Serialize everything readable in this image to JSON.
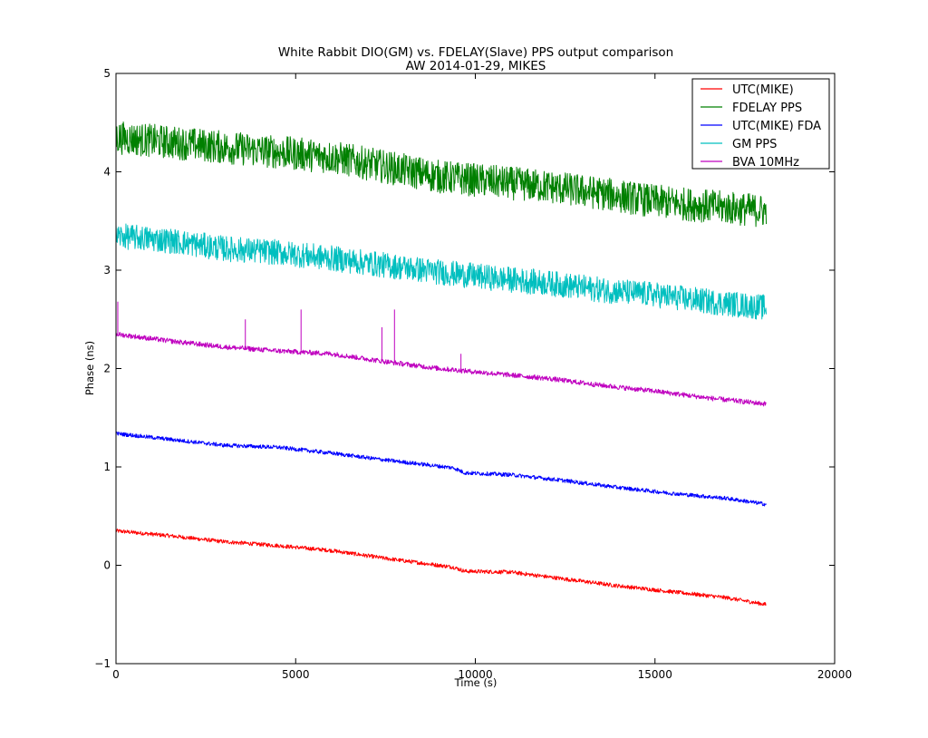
{
  "chart_data": {
    "type": "line",
    "title": "White Rabbit DIO(GM) vs. FDELAY(Slave) PPS output comparison",
    "subtitle": "AW 2014-01-29, MIKES",
    "xlabel": "Time (s)",
    "ylabel": "Phase (ns)",
    "xlim": [
      0,
      20000
    ],
    "ylim": [
      -1,
      5
    ],
    "xticks": [
      "0",
      "5000",
      "10000",
      "15000",
      "20000"
    ],
    "yticks": [
      "−1",
      "0",
      "1",
      "2",
      "3",
      "4",
      "5"
    ],
    "grid": false,
    "legend_position": "top-right",
    "series": [
      {
        "name": "UTC(MIKE)",
        "color": "#ff0000",
        "noise": 0.02,
        "points": [
          [
            0,
            0.35
          ],
          [
            1500,
            0.3
          ],
          [
            3000,
            0.24
          ],
          [
            4500,
            0.2
          ],
          [
            6000,
            0.15
          ],
          [
            7500,
            0.07
          ],
          [
            9400,
            -0.02
          ],
          [
            9700,
            -0.06
          ],
          [
            11000,
            -0.07
          ],
          [
            12500,
            -0.14
          ],
          [
            14000,
            -0.21
          ],
          [
            15500,
            -0.27
          ],
          [
            17000,
            -0.33
          ],
          [
            18100,
            -0.4
          ]
        ]
      },
      {
        "name": "FDELAY PPS",
        "color": "#008000",
        "noise": 0.17,
        "points": [
          [
            0,
            4.35
          ],
          [
            1500,
            4.3
          ],
          [
            3000,
            4.25
          ],
          [
            4500,
            4.2
          ],
          [
            6000,
            4.15
          ],
          [
            7500,
            4.05
          ],
          [
            9000,
            3.95
          ],
          [
            10500,
            3.9
          ],
          [
            12000,
            3.85
          ],
          [
            13500,
            3.78
          ],
          [
            15000,
            3.7
          ],
          [
            16500,
            3.65
          ],
          [
            18100,
            3.6
          ]
        ]
      },
      {
        "name": "UTC(MIKE) FDA",
        "color": "#0000ff",
        "noise": 0.02,
        "points": [
          [
            0,
            1.34
          ],
          [
            1500,
            1.28
          ],
          [
            3000,
            1.22
          ],
          [
            4500,
            1.2
          ],
          [
            6000,
            1.14
          ],
          [
            7500,
            1.07
          ],
          [
            9400,
            0.99
          ],
          [
            9700,
            0.94
          ],
          [
            11000,
            0.92
          ],
          [
            12500,
            0.86
          ],
          [
            14000,
            0.79
          ],
          [
            15500,
            0.73
          ],
          [
            17000,
            0.68
          ],
          [
            18100,
            0.62
          ]
        ]
      },
      {
        "name": "GM PPS",
        "color": "#00bfbf",
        "noise": 0.13,
        "points": [
          [
            0,
            3.35
          ],
          [
            1500,
            3.3
          ],
          [
            3000,
            3.22
          ],
          [
            4500,
            3.18
          ],
          [
            6000,
            3.12
          ],
          [
            7500,
            3.05
          ],
          [
            9000,
            2.98
          ],
          [
            10500,
            2.92
          ],
          [
            12000,
            2.87
          ],
          [
            13500,
            2.8
          ],
          [
            15000,
            2.75
          ],
          [
            16500,
            2.68
          ],
          [
            18100,
            2.62
          ]
        ]
      },
      {
        "name": "BVA 10MHz",
        "color": "#bf00bf",
        "noise": 0.025,
        "points": [
          [
            0,
            2.35
          ],
          [
            1500,
            2.28
          ],
          [
            3000,
            2.22
          ],
          [
            4500,
            2.18
          ],
          [
            6000,
            2.15
          ],
          [
            7500,
            2.07
          ],
          [
            9000,
            2.0
          ],
          [
            10500,
            1.95
          ],
          [
            12000,
            1.9
          ],
          [
            13500,
            1.83
          ],
          [
            15000,
            1.77
          ],
          [
            16500,
            1.7
          ],
          [
            18100,
            1.64
          ]
        ],
        "spikes": [
          [
            50,
            2.68
          ],
          [
            3600,
            2.5
          ],
          [
            5150,
            2.6
          ],
          [
            7400,
            2.42
          ],
          [
            7750,
            2.6
          ],
          [
            9600,
            2.15
          ]
        ]
      }
    ]
  }
}
